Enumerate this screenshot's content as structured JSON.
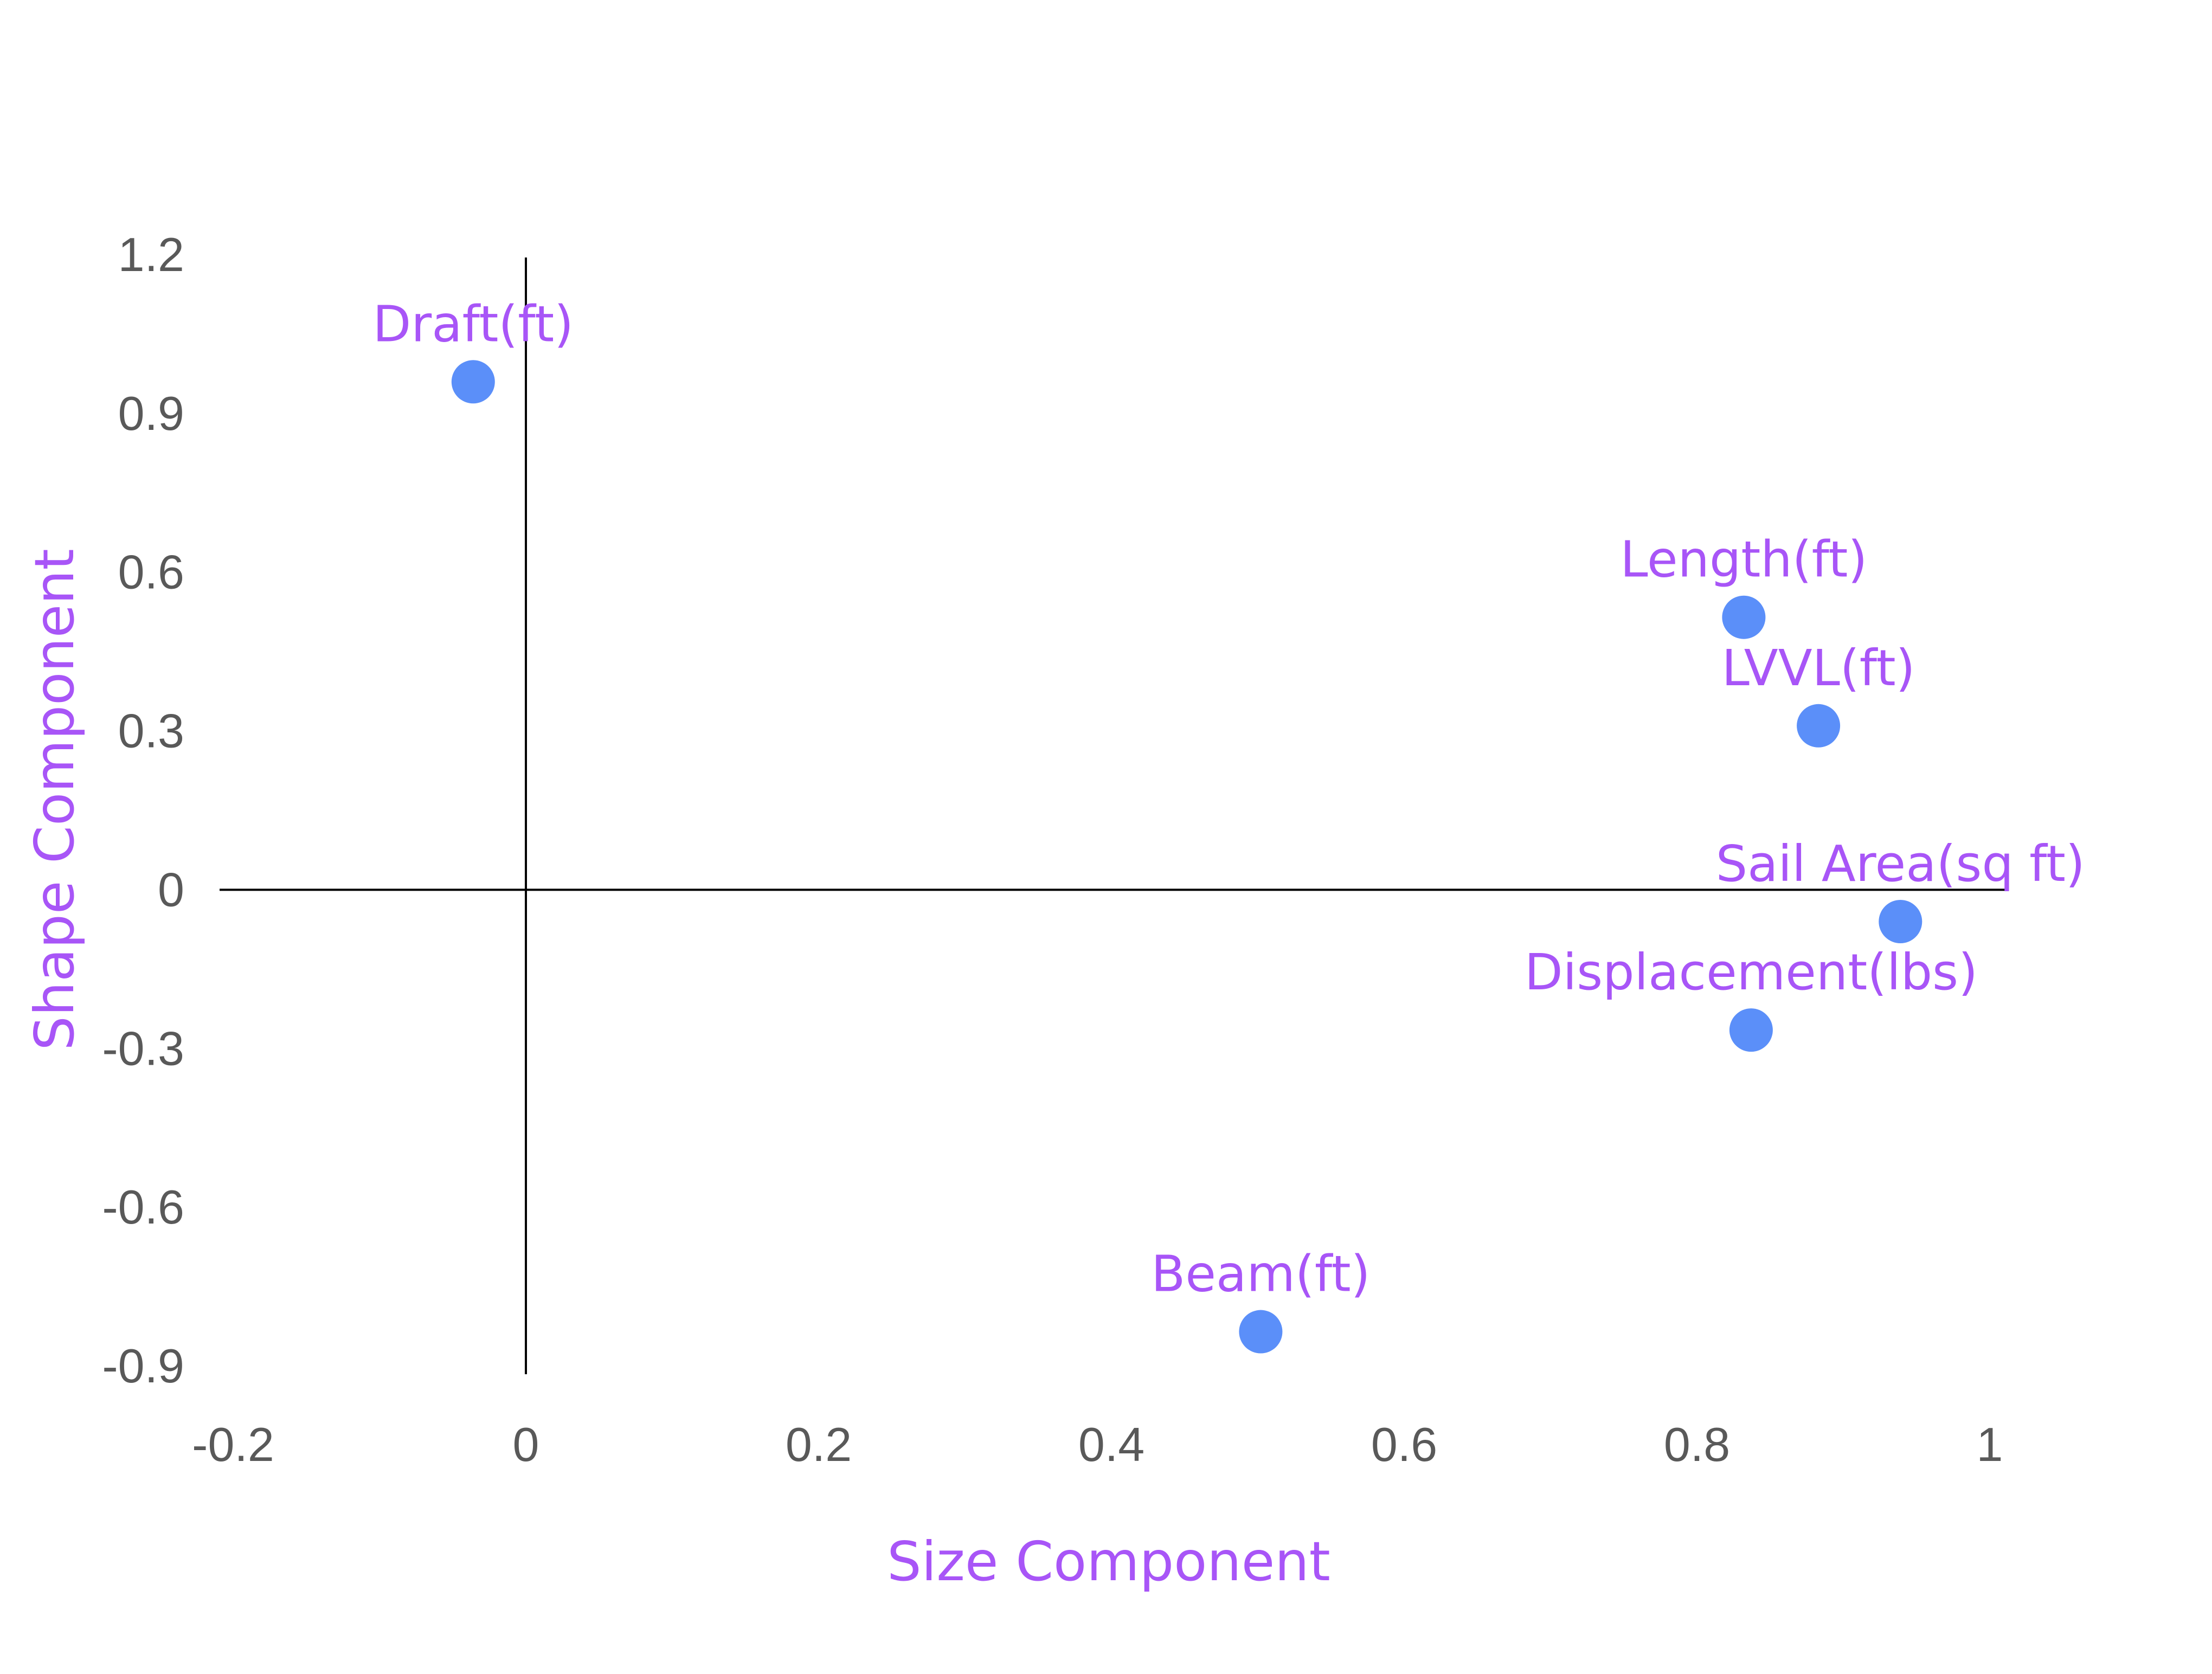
{
  "chart_data": {
    "type": "scatter",
    "title": "",
    "xlabel": "Size Component",
    "ylabel": "Shape Component",
    "xlim": [
      -0.2,
      1
    ],
    "ylim": [
      -0.9,
      1.2
    ],
    "x_ticks": [
      "-0.2",
      "0",
      "0.2",
      "0.4",
      "0.6",
      "0.8",
      "1"
    ],
    "y_ticks": [
      "1.2",
      "0.9",
      "0.6",
      "0.3",
      "0",
      "-0.3",
      "-0.6",
      "-0.9"
    ],
    "grid": false,
    "marker_color": "#5b8ff9",
    "label_color": "#a855f7",
    "points": [
      {
        "label": "Draft(ft)",
        "x": -0.036,
        "y": 0.96
      },
      {
        "label": "Length(ft)",
        "x": 0.832,
        "y": 0.515
      },
      {
        "label": "LVVL(ft)",
        "x": 0.883,
        "y": 0.31
      },
      {
        "label": "Sail Area(sq ft)",
        "x": 0.939,
        "y": -0.06
      },
      {
        "label": "Displacement(lbs)",
        "x": 0.837,
        "y": -0.265
      },
      {
        "label": "Beam(ft)",
        "x": 0.502,
        "y": -0.835
      }
    ]
  }
}
